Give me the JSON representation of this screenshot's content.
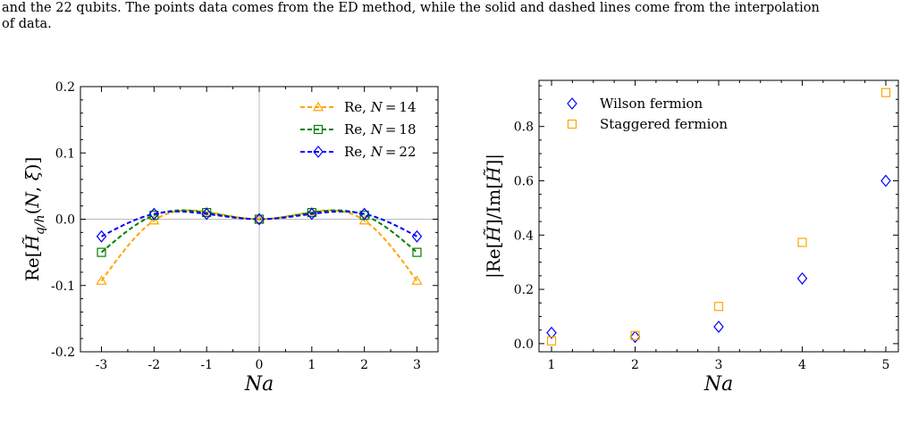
{
  "caption": {
    "line1": "and the 22 qubits. The points data comes from the ED method, while the solid and dashed lines come from the interpolation",
    "line2": "of data."
  },
  "colors": {
    "n14": "#ffa500",
    "n18": "#008000",
    "n22": "#0000ff",
    "wilson": "#0000ff",
    "staggered": "#ffa500",
    "zero_line": "#bbbbbb"
  },
  "chart_data": [
    {
      "type": "line",
      "title": "",
      "xlabel": "Na",
      "ylabel": "Re[H̃_{q/h}(N, ξ)]",
      "xlim": [
        -3.4,
        3.4
      ],
      "ylim": [
        -0.2,
        0.2
      ],
      "x_ticks": [
        "-3",
        "-2",
        "-1",
        "0",
        "1",
        "2",
        "3"
      ],
      "y_ticks": [
        "0.2",
        "0.1",
        "0.0",
        "-0.1",
        "-0.2"
      ],
      "x": [
        -3,
        -2,
        -1,
        0,
        1,
        2,
        3
      ],
      "legend_position": "top-right",
      "series": [
        {
          "name": "Re, N = 14",
          "label_main": "Re, ",
          "label_var": "N",
          "label_num": "14",
          "marker": "triangle",
          "color": "#ffa500",
          "values": [
            -0.093,
            -0.002,
            0.011,
            0.0,
            0.011,
            -0.002,
            -0.093
          ]
        },
        {
          "name": "Re, N = 18",
          "label_main": "Re, ",
          "label_var": "N",
          "label_num": "18",
          "marker": "square",
          "color": "#008000",
          "values": [
            -0.05,
            0.006,
            0.01,
            0.0,
            0.01,
            0.006,
            -0.05
          ]
        },
        {
          "name": "Re, N = 22",
          "label_main": "Re, ",
          "label_var": "N",
          "label_num": "22",
          "marker": "diamond",
          "color": "#0000ff",
          "values": [
            -0.026,
            0.008,
            0.008,
            0.0,
            0.008,
            0.008,
            -0.026
          ]
        }
      ]
    },
    {
      "type": "scatter",
      "title": "",
      "xlabel": "Na",
      "ylabel": "|Re[H̃]/Im[H̃]|",
      "xlim": [
        0.85,
        5.15
      ],
      "ylim": [
        -0.03,
        0.97
      ],
      "x_ticks": [
        "1",
        "2",
        "3",
        "4",
        "5"
      ],
      "y_ticks": [
        "0.0",
        "0.2",
        "0.4",
        "0.6",
        "0.8"
      ],
      "x": [
        1,
        2,
        3,
        4,
        5
      ],
      "legend_position": "top-left",
      "series": [
        {
          "name": "Wilson fermion",
          "marker": "diamond",
          "color": "#0000ff",
          "values": [
            0.04,
            0.025,
            0.062,
            0.24,
            0.6
          ]
        },
        {
          "name": "Staggered fermion",
          "marker": "square",
          "color": "#ffa500",
          "values": [
            0.01,
            0.03,
            0.137,
            0.373,
            0.925
          ]
        }
      ]
    }
  ]
}
